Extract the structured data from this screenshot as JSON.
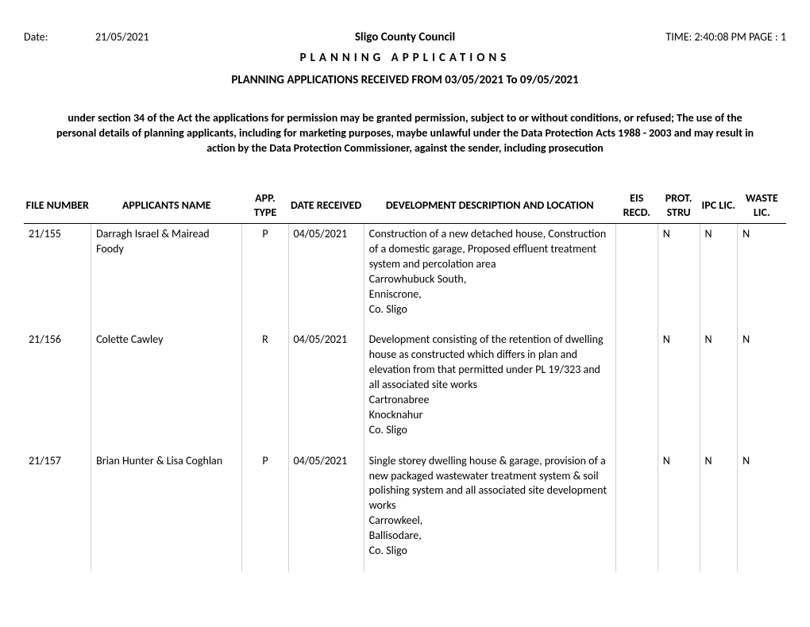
{
  "header": {
    "date_label": "Date:",
    "date_value": "21/05/2021",
    "council_name": "Sligo County Council",
    "time_page": "TIME: 2:40:08 PM PAGE : 1"
  },
  "title_spaced": "PLANNING APPLICATIONS",
  "subtitle": "PLANNING APPLICATIONS RECEIVED FROM 03/05/2021 To 09/05/2021",
  "notice": "under section 34 of the Act the applications for permission may be granted permission, subject to or without conditions, or refused; The use of the personal details of planning applicants, including for marketing purposes, maybe unlawful under the Data Protection Acts 1988 - 2003 and may result in action by the Data Protection Commissioner, against the sender, including prosecution",
  "columns": {
    "file_number": "FILE NUMBER",
    "applicants_name": "APPLICANTS NAME",
    "app_type": "APP. TYPE",
    "date_received": "DATE RECEIVED",
    "description": "DEVELOPMENT DESCRIPTION AND LOCATION",
    "eis_recd": "EIS RECD.",
    "prot_stru": "PROT. STRU",
    "ipc_lic": "IPC LIC.",
    "waste_lic": "WASTE LIC."
  },
  "rows": [
    {
      "file_number": "21/155",
      "applicant": "Darragh Israel & Mairead Foody",
      "app_type": "P",
      "date_received": "04/05/2021",
      "description": "Construction of a new detached house, Construction of a domestic garage, Proposed effluent treatment system and percolation area\nCarrowhubuck South,\nEnniscrone,\nCo. Sligo",
      "eis": "",
      "prot": "N",
      "ipc": "N",
      "waste": "N"
    },
    {
      "file_number": "21/156",
      "applicant": "Colette Cawley",
      "app_type": "R",
      "date_received": "04/05/2021",
      "description": "Development consisting of the retention of dwelling house as constructed which differs in plan and elevation from that permitted under PL 19/323 and all associated site works\nCartronabree\nKnocknahur\nCo. Sligo",
      "eis": "",
      "prot": "N",
      "ipc": "N",
      "waste": "N"
    },
    {
      "file_number": "21/157",
      "applicant": "Brian Hunter & Lisa Coghlan",
      "app_type": "P",
      "date_received": "04/05/2021",
      "description": "Single storey dwelling house & garage, provision of a new packaged wastewater treatment system & soil polishing system and all associated site development works\nCarrowkeel,\nBallisodare,\nCo. Sligo",
      "eis": "",
      "prot": "N",
      "ipc": "N",
      "waste": "N"
    }
  ]
}
